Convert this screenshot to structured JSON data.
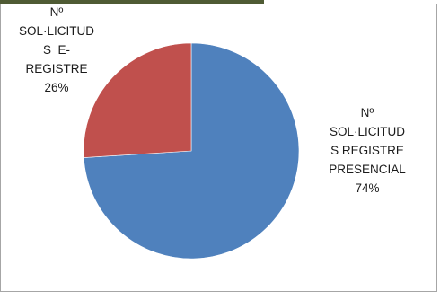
{
  "chart_data": {
    "type": "pie",
    "title": "",
    "slices": [
      {
        "name_lines": [
          "Nº",
          "SOL·LICITUD",
          "S REGISTRE",
          "PRESENCIAL"
        ],
        "value": 74,
        "percent_label": "74%",
        "color": "#4f81bd"
      },
      {
        "name_lines": [
          "Nº",
          "SOL·LICITUD",
          "S  E-",
          "REGISTRE"
        ],
        "value": 26,
        "percent_label": "26%",
        "color": "#c0504d"
      }
    ],
    "legend": "none",
    "data_labels": "outside"
  }
}
